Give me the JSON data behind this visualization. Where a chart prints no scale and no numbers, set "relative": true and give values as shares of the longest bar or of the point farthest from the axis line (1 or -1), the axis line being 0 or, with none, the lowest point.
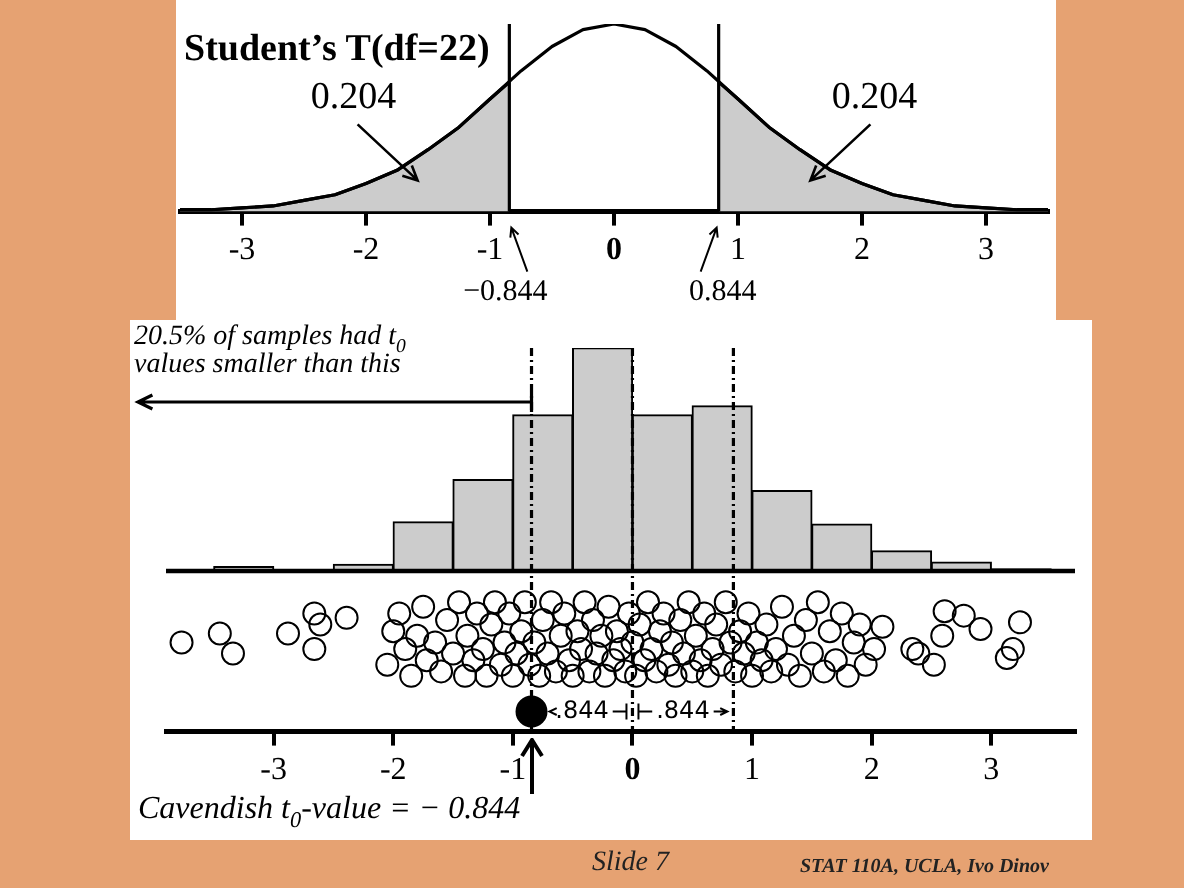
{
  "chart_data": [
    {
      "type": "line",
      "title": "Student’s T(df=22)",
      "relative": true,
      "x": [
        -3.5,
        -3.25,
        -3,
        -2.75,
        -2.5,
        -2.25,
        -2,
        -1.75,
        -1.5,
        -1.25,
        -1,
        -0.75,
        -0.5,
        -0.25,
        0,
        0.25,
        0.5,
        0.75,
        1,
        1.25,
        1.5,
        1.75,
        2,
        2.25,
        2.5,
        2.75,
        3,
        3.25,
        3.5
      ],
      "series": [
        {
          "type": "area",
          "color": "#cccccc",
          "x": [
            -3.5,
            -3.25,
            -3,
            -2.75,
            -2.5,
            -2.25,
            -2,
            -1.75,
            -1.5,
            -1.25,
            -1,
            -0.844
          ],
          "values": [
            0.01,
            0.01,
            0.02,
            0.03,
            0.06,
            0.09,
            0.15,
            0.22,
            0.33,
            0.45,
            0.6,
            0.69
          ]
        },
        {
          "type": "area",
          "color": "#cccccc",
          "x": [
            0.844,
            1,
            1.25,
            1.5,
            1.75,
            2,
            2.25,
            2.5,
            2.75,
            3,
            3.25,
            3.5
          ],
          "values": [
            0.69,
            0.6,
            0.45,
            0.33,
            0.22,
            0.15,
            0.09,
            0.06,
            0.03,
            0.02,
            0.01,
            0.01
          ]
        },
        {
          "type": "line",
          "color": "#000000",
          "values": [
            0.01,
            0.01,
            0.02,
            0.03,
            0.06,
            0.09,
            0.15,
            0.22,
            0.33,
            0.45,
            0.6,
            0.75,
            0.88,
            0.97,
            1,
            0.97,
            0.88,
            0.75,
            0.6,
            0.45,
            0.33,
            0.22,
            0.15,
            0.09,
            0.06,
            0.03,
            0.02,
            0.01,
            0.01
          ]
        }
      ],
      "xlim": [
        -3.5,
        3.5
      ],
      "xticks": [
        -3,
        -2,
        -1,
        0,
        1,
        2,
        3
      ],
      "ref_lines": [
        {
          "axis": "x",
          "value": -0.844,
          "label": "−0.844"
        },
        {
          "axis": "x",
          "value": 0.844,
          "label": "0.844"
        }
      ],
      "annotations": [
        "0.204",
        "0.204"
      ]
    },
    {
      "type": "histogram",
      "relative": true,
      "color": "#cccccc",
      "bins": [
        -3.5,
        -3,
        -2.5,
        -2,
        -1.5,
        -1,
        -0.5,
        0,
        0.5,
        1,
        1.5,
        2,
        2.5,
        3,
        3.5
      ],
      "values": [
        0.02,
        0,
        0.03,
        0.22,
        0.41,
        0.7,
        1,
        0.7,
        0.74,
        0.36,
        0.21,
        0.09,
        0.04,
        0.01
      ],
      "xlim": [
        -3.9,
        3.7
      ],
      "xticks": [
        -3,
        -2,
        -1,
        0,
        1,
        2,
        3
      ],
      "marker": "circle",
      "series": [
        {
          "type": "scatter",
          "color": "#000000",
          "x": [
            -3.77,
            -3.45,
            -3.34,
            -2.88,
            -2.66,
            -2.66,
            -2.61,
            -2.39,
            -2.05,
            -2.0,
            -1.95,
            -1.9,
            -1.85,
            -1.8,
            -1.75,
            -1.72,
            -1.65,
            -1.6,
            -1.55,
            -1.5,
            -1.45,
            -1.4,
            -1.38,
            -1.33,
            -1.3,
            -1.25,
            -1.22,
            -1.18,
            -1.15,
            -1.1,
            -1.07,
            -1.03,
            -1.0,
            -0.97,
            -0.93,
            -0.9,
            -0.86,
            -0.82,
            -0.78,
            -0.75,
            -0.71,
            -0.68,
            -0.64,
            -0.6,
            -0.57,
            -0.53,
            -0.5,
            -0.46,
            -0.43,
            -0.4,
            -0.36,
            -0.33,
            -0.3,
            -0.26,
            -0.23,
            -0.2,
            -0.16,
            -0.13,
            -0.1,
            -0.06,
            -0.03,
            0,
            0.03,
            0.06,
            0.1,
            0.13,
            0.16,
            0.2,
            0.23,
            0.26,
            0.3,
            0.33,
            0.36,
            0.4,
            0.43,
            0.47,
            0.5,
            0.53,
            0.57,
            0.6,
            0.63,
            0.67,
            0.7,
            0.74,
            0.78,
            0.82,
            0.86,
            0.9,
            0.93,
            0.97,
            1.0,
            1.04,
            1.08,
            1.12,
            1.16,
            1.2,
            1.25,
            1.3,
            1.35,
            1.4,
            1.45,
            1.5,
            1.55,
            1.6,
            1.65,
            1.7,
            1.75,
            1.8,
            1.85,
            1.9,
            1.95,
            2.02,
            2.09,
            2.34,
            2.39,
            2.52,
            2.59,
            2.61,
            2.77,
            2.91,
            3.13,
            3.18,
            3.24
          ],
          "values": [
            -0.32,
            -0.28,
            -0.37,
            -0.28,
            -0.19,
            -0.35,
            -0.24,
            -0.21,
            -0.42,
            -0.27,
            -0.19,
            -0.35,
            -0.47,
            -0.29,
            -0.16,
            -0.4,
            -0.32,
            -0.45,
            -0.22,
            -0.37,
            -0.14,
            -0.47,
            -0.29,
            -0.4,
            -0.19,
            -0.35,
            -0.47,
            -0.24,
            -0.14,
            -0.42,
            -0.32,
            -0.19,
            -0.47,
            -0.37,
            -0.27,
            -0.14,
            -0.42,
            -0.32,
            -0.47,
            -0.22,
            -0.37,
            -0.14,
            -0.45,
            -0.29,
            -0.19,
            -0.4,
            -0.47,
            -0.27,
            -0.35,
            -0.14,
            -0.45,
            -0.22,
            -0.37,
            -0.29,
            -0.47,
            -0.16,
            -0.4,
            -0.27,
            -0.35,
            -0.45,
            -0.19,
            -0.32,
            -0.47,
            -0.24,
            -0.4,
            -0.14,
            -0.35,
            -0.45,
            -0.27,
            -0.19,
            -0.42,
            -0.32,
            -0.47,
            -0.22,
            -0.37,
            -0.14,
            -0.45,
            -0.29,
            -0.4,
            -0.19,
            -0.47,
            -0.35,
            -0.24,
            -0.42,
            -0.14,
            -0.32,
            -0.45,
            -0.27,
            -0.37,
            -0.19,
            -0.47,
            -0.32,
            -0.4,
            -0.24,
            -0.45,
            -0.35,
            -0.16,
            -0.42,
            -0.29,
            -0.47,
            -0.22,
            -0.37,
            -0.14,
            -0.45,
            -0.27,
            -0.4,
            -0.19,
            -0.47,
            -0.32,
            -0.24,
            -0.42,
            -0.35,
            -0.25,
            -0.35,
            -0.37,
            -0.42,
            -0.29,
            -0.18,
            -0.2,
            -0.26,
            -0.39,
            -0.35,
            -0.23
          ]
        },
        {
          "type": "scatter",
          "color": "#000000",
          "x": [
            -0.844
          ],
          "values": [
            -0.63
          ]
        }
      ],
      "ref_lines": [
        {
          "axis": "x",
          "value": -0.844,
          "line_style": "dashed"
        },
        {
          "axis": "x",
          "value": 0,
          "line_style": "dashed"
        },
        {
          "axis": "x",
          "value": 0.844,
          "line_style": "dashed"
        }
      ],
      "annotations": [
        "20.5% of samples had t$_{0}$ values smaller than this",
        ".844",
        ".844",
        "Cavendish t$_{0}$-value = − 0.844",
        "Slide 7",
        "STAT 110A, UCLA, Ivo Dinov"
      ]
    }
  ]
}
